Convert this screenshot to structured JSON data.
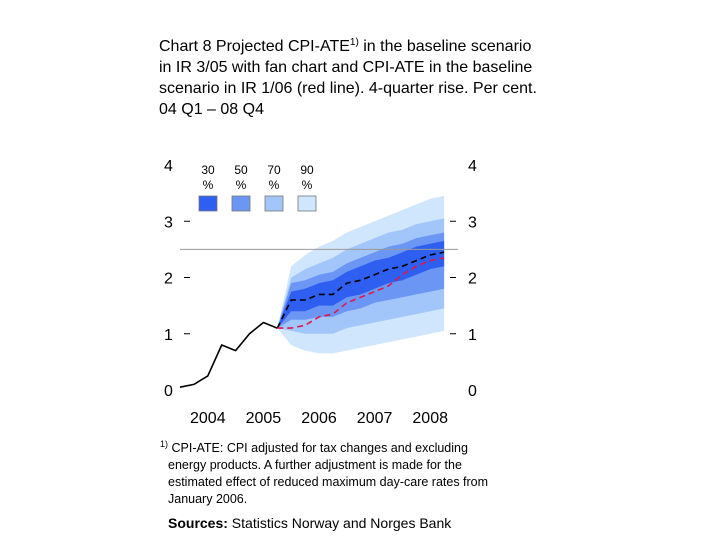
{
  "title": {
    "prefix": "Chart 8 Projected CPI-ATE",
    "sup": "1)",
    "rest": " in the baseline scenario  in IR 3/05 with fan chart and CPI-ATE in the baseline scenario in IR 1/06 (red line). 4-quarter rise. Per cent. 04 Q1 – 08 Q4"
  },
  "footnote": {
    "marker": "1)",
    "text": " CPI-ATE: CPI adjusted for tax changes and excluding energy products. A further adjustment is made for the estimated effect of reduced maximum day-care rates from January 2006."
  },
  "sources": {
    "label": "Sources:",
    "text": " Statistics Norway and Norges Bank"
  },
  "colors": {
    "band30": "#2e5ff0",
    "band50": "#6c96f4",
    "band70": "#a3c6fa",
    "band90": "#d0e6fc",
    "historical": "#000000",
    "projection_ir305": "#000000",
    "projection_ir106": "#e0174a",
    "reference_line": "#999999"
  },
  "chart_data": {
    "type": "line",
    "ylim": [
      0,
      4
    ],
    "xlim": [
      2004.0,
      2009.0
    ],
    "yticks_left": [
      "0",
      "1",
      "2",
      "3",
      "4"
    ],
    "yticks_right": [
      "0",
      "1",
      "2",
      "3",
      "4"
    ],
    "xtick_labels": [
      "2004",
      "2005",
      "2006",
      "2007",
      "2008"
    ],
    "reference_line_y": 2.5,
    "legend": [
      {
        "label": "30",
        "unit": "%",
        "color_key": "band30"
      },
      {
        "label": "50",
        "unit": "%",
        "color_key": "band50"
      },
      {
        "label": "70",
        "unit": "%",
        "color_key": "band70"
      },
      {
        "label": "90",
        "unit": "%",
        "color_key": "band90"
      }
    ],
    "series": [
      {
        "role": "historical",
        "style": "solid",
        "color_key": "historical",
        "x": [
          2004.0,
          2004.25,
          2004.5,
          2004.75,
          2005.0,
          2005.25,
          2005.5,
          2005.75
        ],
        "y": [
          0.05,
          0.1,
          0.25,
          0.8,
          0.7,
          1.0,
          1.2,
          1.1
        ]
      },
      {
        "role": "projection_ir305",
        "style": "dashed",
        "color_key": "projection_ir305",
        "x": [
          2005.75,
          2006.0,
          2006.25,
          2006.5,
          2006.75,
          2007.0,
          2007.25,
          2007.5,
          2007.75,
          2008.0,
          2008.25,
          2008.5,
          2008.75
        ],
        "y": [
          1.1,
          1.6,
          1.6,
          1.7,
          1.7,
          1.9,
          1.95,
          2.05,
          2.15,
          2.2,
          2.3,
          2.4,
          2.45
        ]
      },
      {
        "role": "projection_ir106",
        "style": "dashed",
        "color_key": "projection_ir106",
        "x": [
          2005.75,
          2006.0,
          2006.25,
          2006.5,
          2006.75,
          2007.0,
          2007.25,
          2007.5,
          2007.75,
          2008.0,
          2008.25,
          2008.5,
          2008.75
        ],
        "y": [
          1.1,
          1.1,
          1.15,
          1.3,
          1.35,
          1.55,
          1.65,
          1.75,
          1.85,
          2.05,
          2.2,
          2.3,
          2.35
        ]
      }
    ],
    "fan_x": [
      2005.75,
      2006.0,
      2006.25,
      2006.5,
      2006.75,
      2007.0,
      2007.25,
      2007.5,
      2007.75,
      2008.0,
      2008.25,
      2008.5,
      2008.75
    ],
    "fan_bands": [
      {
        "level": "90",
        "color_key": "band90",
        "lower": [
          1.1,
          0.8,
          0.7,
          0.65,
          0.65,
          0.7,
          0.75,
          0.8,
          0.85,
          0.9,
          0.95,
          1.0,
          1.05
        ],
        "upper": [
          1.1,
          2.2,
          2.4,
          2.55,
          2.65,
          2.8,
          2.9,
          3.0,
          3.1,
          3.2,
          3.3,
          3.4,
          3.45
        ]
      },
      {
        "level": "70",
        "color_key": "band70",
        "lower": [
          1.1,
          1.05,
          1.0,
          1.0,
          1.0,
          1.1,
          1.15,
          1.2,
          1.25,
          1.3,
          1.35,
          1.4,
          1.45
        ],
        "upper": [
          1.1,
          2.0,
          2.15,
          2.25,
          2.35,
          2.5,
          2.6,
          2.7,
          2.8,
          2.85,
          2.95,
          3.0,
          3.05
        ]
      },
      {
        "level": "50",
        "color_key": "band50",
        "lower": [
          1.1,
          1.25,
          1.25,
          1.3,
          1.3,
          1.4,
          1.45,
          1.55,
          1.6,
          1.65,
          1.7,
          1.75,
          1.8
        ],
        "upper": [
          1.1,
          1.9,
          1.95,
          2.05,
          2.1,
          2.25,
          2.35,
          2.45,
          2.55,
          2.6,
          2.7,
          2.75,
          2.8
        ]
      },
      {
        "level": "30",
        "color_key": "band30",
        "lower": [
          1.1,
          1.4,
          1.4,
          1.5,
          1.5,
          1.65,
          1.7,
          1.8,
          1.9,
          1.95,
          2.05,
          2.15,
          2.2
        ],
        "upper": [
          1.1,
          1.75,
          1.8,
          1.9,
          1.95,
          2.1,
          2.2,
          2.3,
          2.35,
          2.45,
          2.55,
          2.6,
          2.65
        ]
      }
    ]
  }
}
